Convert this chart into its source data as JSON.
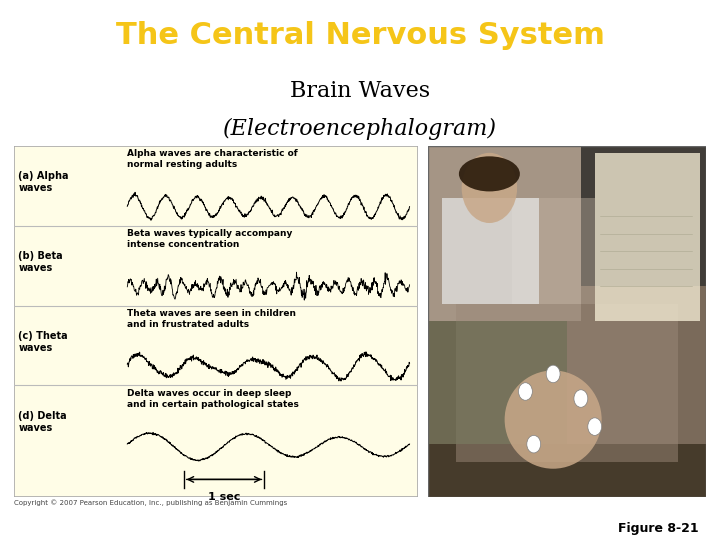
{
  "title_text": "The Central Nervous System",
  "title_bg_color": "#1a2472",
  "title_text_color": "#f5c518",
  "subtitle1": "Brain Waves",
  "subtitle2": "(Electroencephalogram)",
  "subtitle_color": "#000000",
  "figure_label": "Figure 8-21",
  "copyright": "Copyright © 2007 Pearson Education, Inc., publishing as Benjamin Cummings",
  "panel_bg": "#fffde7",
  "panel_border": "#aaaaaa",
  "background_color": "#ffffff",
  "wave_descriptions": [
    "Alpha waves are characteristic of\nnormal resting adults",
    "Beta waves typically accompany\nintense concentration",
    "Theta waves are seen in children\nand in frustrated adults",
    "Delta waves occur in deep sleep\nand in certain pathological states"
  ],
  "wave_labels": [
    "(a) Alpha\nwaves",
    "(b) Beta\nwaves",
    "(c) Theta\nwaves",
    "(d) Delta\nwaves"
  ]
}
